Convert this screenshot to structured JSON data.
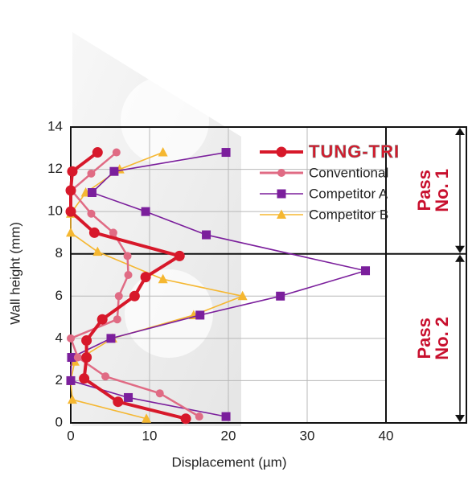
{
  "chart_data": {
    "type": "line",
    "xlabel": "Displacement  (µm)",
    "ylabel": "Wall height (mm)",
    "xlim": [
      0,
      40
    ],
    "ylim": [
      0,
      14
    ],
    "xticks": [
      0,
      10,
      20,
      30,
      40
    ],
    "yticks": [
      0,
      2,
      4,
      6,
      8,
      10,
      12,
      14
    ],
    "grid": true,
    "annotations": [
      {
        "text": "Pass\nNo. 1",
        "y_range": [
          8,
          14
        ]
      },
      {
        "text": "Pass\nNo. 2",
        "y_range": [
          0,
          8
        ]
      }
    ],
    "series": [
      {
        "name": "TUNG-TRI",
        "color": "#d7182a",
        "marker": "circle",
        "x": [
          14.6,
          6.0,
          1.7,
          2.0,
          2.0,
          4.0,
          8.1,
          9.5,
          13.8,
          3.0,
          0,
          0,
          0.2,
          3.4
        ],
        "values": [
          0.2,
          1.0,
          2.1,
          3.1,
          3.9,
          4.9,
          6.0,
          6.9,
          7.9,
          9.0,
          10.0,
          11.0,
          11.9,
          12.8
        ]
      },
      {
        "name": "Conventional",
        "color": "#e06b84",
        "marker": "circle",
        "x": [
          16.3,
          11.3,
          4.4,
          0.9,
          0,
          5.9,
          6.1,
          7.3,
          7.2,
          5.4,
          2.6,
          0.1,
          2.6,
          5.8
        ],
        "values": [
          0.3,
          1.4,
          2.2,
          3.1,
          4.0,
          4.9,
          6.0,
          7.0,
          7.9,
          9.0,
          9.9,
          11.0,
          11.8,
          12.8
        ]
      },
      {
        "name": "Competitor A",
        "color": "#7b1f9c",
        "marker": "square",
        "x": [
          19.7,
          7.3,
          0,
          0.1,
          5.1,
          16.4,
          26.6,
          37.4,
          17.2,
          9.5,
          2.7,
          5.5,
          19.7
        ],
        "values": [
          0.3,
          1.2,
          2.0,
          3.1,
          4.0,
          5.1,
          6.0,
          7.2,
          8.9,
          10.0,
          10.9,
          11.9,
          12.8
        ]
      },
      {
        "name": "Competitor B",
        "color": "#f5b731",
        "marker": "triangle",
        "x": [
          9.6,
          0.2,
          0,
          0.5,
          5.3,
          15.6,
          21.8,
          11.7,
          3.4,
          0,
          0,
          1.9,
          6.2,
          11.7
        ],
        "values": [
          0.2,
          1.1,
          2.0,
          2.9,
          4.0,
          5.1,
          6.0,
          6.8,
          8.1,
          9.0,
          9.9,
          10.9,
          12.0,
          12.8
        ]
      }
    ]
  }
}
